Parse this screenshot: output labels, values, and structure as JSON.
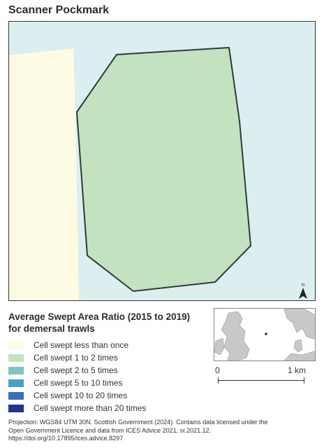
{
  "title": "Scanner Pockmark",
  "map": {
    "colors": {
      "background": "#dbeef0",
      "land_strip": "#fdfbe3",
      "polygon_fill": "#c3e2bf",
      "polygon_stroke": "#2f3b3a"
    },
    "north_arrow_icon": "north-arrow-icon"
  },
  "legend": {
    "title_line1": "Average Swept Area Ratio (2015 to 2019)",
    "title_line2": "for demersal trawls",
    "items": [
      {
        "label": "Cell swept less than once",
        "color": "#fdfbe3"
      },
      {
        "label": "Cell swept 1 to 2 times",
        "color": "#c3e2bf"
      },
      {
        "label": "Cell swept 2 to 5 times",
        "color": "#7ec4c0"
      },
      {
        "label": "Cell swept 5 to 10 times",
        "color": "#4aa0c4"
      },
      {
        "label": "Cell swept 10 to 20 times",
        "color": "#3a6fb4"
      },
      {
        "label": "Cell swept more than 20 times",
        "color": "#24338a"
      }
    ]
  },
  "scale_bar": {
    "start_label": "0",
    "end_label": "1 km"
  },
  "footer": {
    "line1": "Projection: WGS84 UTM 30N. Scottish Government (2024). Contains data licensed under the",
    "line2": "Open Government Licence and data from ICES Advice 2021, sr.2021.12.",
    "line3": "https://doi.org/10.17895/ices.advice.8297"
  }
}
